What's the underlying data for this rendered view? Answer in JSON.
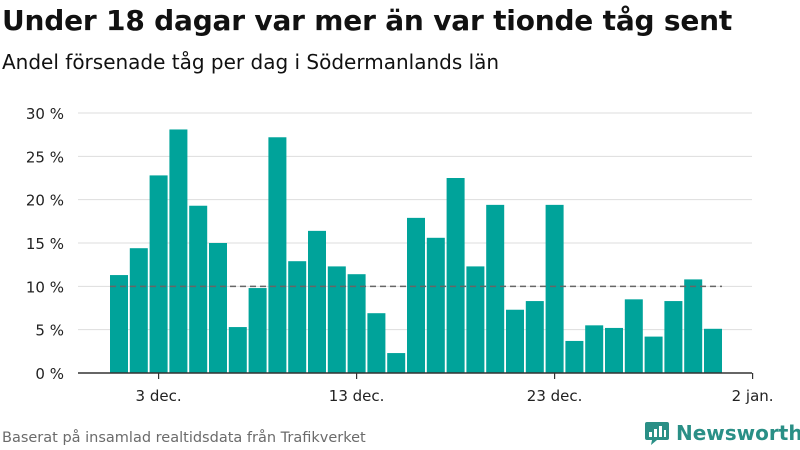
{
  "header": {
    "title": "Under 18 dagar var mer än var tionde tåg sent",
    "subtitle": "Andel försenade tåg per dag i Södermanlands län"
  },
  "footer": {
    "source": "Baserat på insamlad realtidsdata från Trafikverket",
    "brand": "Newsworthy"
  },
  "colors": {
    "bar": "#00a39a",
    "grid": "#dddddd",
    "reference_line": "#666666",
    "brand": "#2a8f86"
  },
  "icons": {
    "brand_logo": "newsworthy-chart-logo-icon"
  },
  "chart_data": {
    "type": "bar",
    "x": [
      "1 dec.",
      "2 dec.",
      "3 dec.",
      "4 dec.",
      "5 dec.",
      "6 dec.",
      "7 dec.",
      "8 dec.",
      "9 dec.",
      "10 dec.",
      "11 dec.",
      "12 dec.",
      "13 dec.",
      "14 dec.",
      "15 dec.",
      "16 dec.",
      "17 dec.",
      "18 dec.",
      "19 dec.",
      "20 dec.",
      "21 dec.",
      "22 dec.",
      "23 dec.",
      "24 dec.",
      "25 dec.",
      "26 dec.",
      "27 dec.",
      "28 dec.",
      "29 dec.",
      "30 dec.",
      "31 dec."
    ],
    "values": [
      11.3,
      14.4,
      22.8,
      28.1,
      19.3,
      15.0,
      5.3,
      9.8,
      27.2,
      12.9,
      16.4,
      12.3,
      11.4,
      6.9,
      2.3,
      17.9,
      15.6,
      22.5,
      12.3,
      19.4,
      7.3,
      8.3,
      19.4,
      3.7,
      5.5,
      5.2,
      8.5,
      4.2,
      8.3,
      10.8,
      5.1
    ],
    "ylim": [
      0,
      30
    ],
    "y_ticks": [
      0,
      5,
      10,
      15,
      20,
      25,
      30
    ],
    "y_tick_labels": [
      "0 %",
      "5 %",
      "10 %",
      "15 %",
      "20 %",
      "25 %",
      "30 %"
    ],
    "x_tick_labels": [
      {
        "label": "3 dec.",
        "day": 3
      },
      {
        "label": "13 dec.",
        "day": 13
      },
      {
        "label": "23 dec.",
        "day": 23
      },
      {
        "label": "2 jan.",
        "day": 33
      }
    ],
    "reference_line": 10,
    "grid": true
  }
}
